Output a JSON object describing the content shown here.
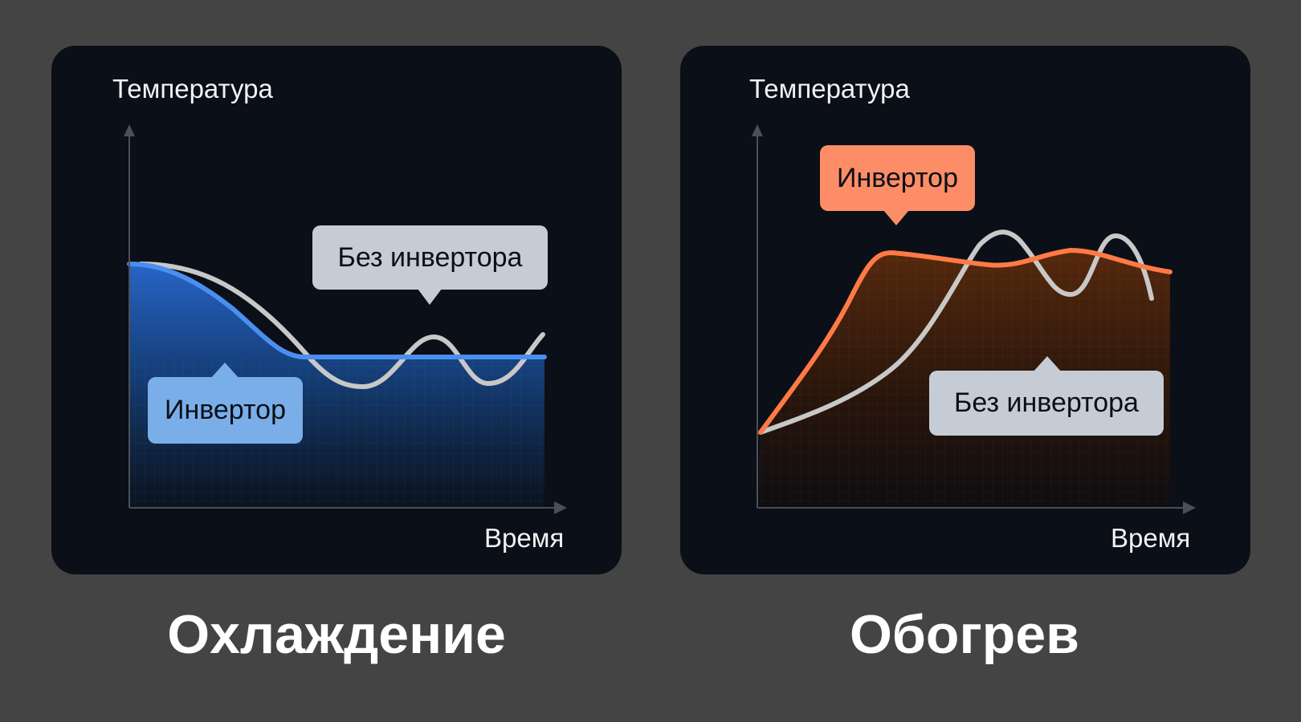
{
  "panels": [
    {
      "title": "Охлаждение",
      "y_axis_label": "Температура",
      "x_axis_label": "Время",
      "series_inverter_label": "Инвертор",
      "series_no_inverter_label": "Без инвертора",
      "inverter_color": "#4a8ef0",
      "inverter_label_color": "#7aaee8",
      "no_inverter_color": "#c8c8c8"
    },
    {
      "title": "Обогрев",
      "y_axis_label": "Температура",
      "x_axis_label": "Время",
      "series_inverter_label": "Инвертор",
      "series_no_inverter_label": "Без инвертора",
      "inverter_color": "#ff7a45",
      "inverter_label_color": "#fc8d66",
      "no_inverter_color": "#c8c8c8"
    }
  ]
}
